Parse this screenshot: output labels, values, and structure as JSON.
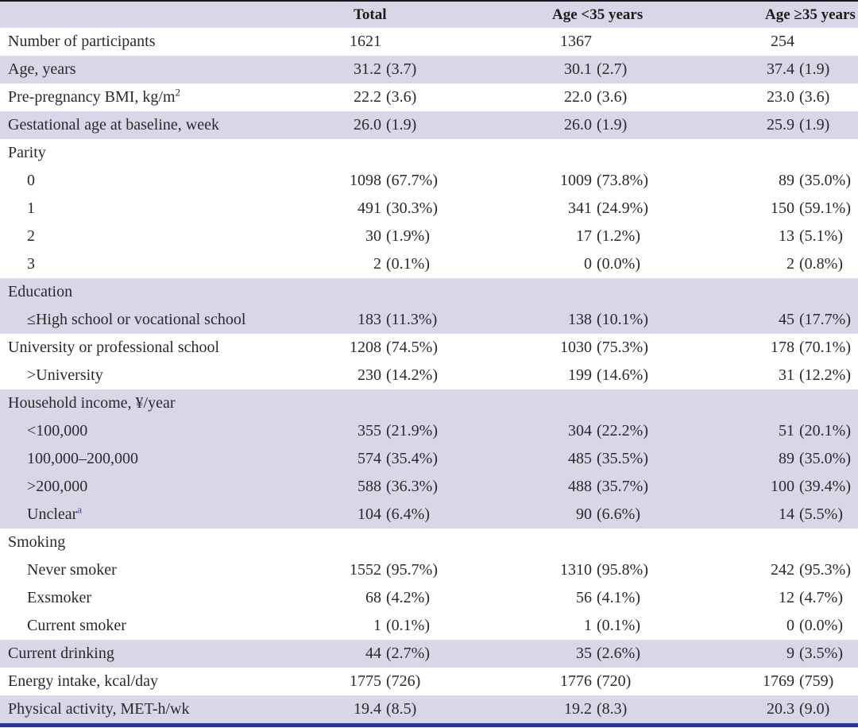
{
  "colors": {
    "stripe": "#d9d6e8",
    "header_stripe": "#d9d6e8",
    "top_rule": "#161616",
    "bottom_rule": "#2a3390",
    "footnote_marker": "#3b47c1",
    "text": "#2a2a2a"
  },
  "table": {
    "header": {
      "label": "",
      "total": "Total",
      "age_lt35": "Age <35 years",
      "age_ge35": "Age ≥35 years"
    },
    "rows": [
      {
        "label": "Number of participants",
        "indent": 0,
        "shade": "white",
        "values": [
          "1621",
          "1367",
          "254"
        ]
      },
      {
        "label": "Age, years",
        "indent": 0,
        "shade": "lav",
        "values": [
          "31.2 (3.7)",
          "30.1 (2.7)",
          "37.4 (1.9)"
        ]
      },
      {
        "label": "Pre-pregnancy BMI, kg/m",
        "sup": "2",
        "supKind": "unit",
        "indent": 0,
        "shade": "white",
        "values": [
          "22.2 (3.6)",
          "22.0 (3.6)",
          "23.0 (3.6)"
        ]
      },
      {
        "label": "Gestational age at baseline, week",
        "indent": 0,
        "shade": "lav",
        "values": [
          "26.0 (1.9)",
          "26.0 (1.9)",
          "25.9 (1.9)"
        ]
      },
      {
        "label": "Parity",
        "indent": 0,
        "shade": "white",
        "values": [
          "",
          "",
          ""
        ]
      },
      {
        "label": "0",
        "indent": 1,
        "shade": "white",
        "values": [
          "1098 (67.7%)",
          "1009 (73.8%)",
          "89 (35.0%)"
        ]
      },
      {
        "label": "1",
        "indent": 1,
        "shade": "white",
        "values": [
          "491 (30.3%)",
          "341 (24.9%)",
          "150 (59.1%)"
        ]
      },
      {
        "label": "2",
        "indent": 1,
        "shade": "white",
        "values": [
          "30 (1.9%)",
          "17 (1.2%)",
          "13 (5.1%)"
        ]
      },
      {
        "label": "3",
        "indent": 1,
        "shade": "white",
        "values": [
          "2 (0.1%)",
          "0 (0.0%)",
          "2 (0.8%)"
        ]
      },
      {
        "label": "Education",
        "indent": 0,
        "shade": "lav",
        "values": [
          "",
          "",
          ""
        ]
      },
      {
        "label": "≤High school or vocational school",
        "indent": 1,
        "shade": "lav",
        "values": [
          "183 (11.3%)",
          "138 (10.1%)",
          "45 (17.7%)"
        ]
      },
      {
        "label": "University or professional school",
        "indent": 0,
        "shade": "white",
        "values": [
          "1208 (74.5%)",
          "1030 (75.3%)",
          "178 (70.1%)"
        ]
      },
      {
        "label": ">University",
        "indent": 1,
        "shade": "white",
        "values": [
          "230 (14.2%)",
          "199 (14.6%)",
          "31 (12.2%)"
        ]
      },
      {
        "label": "Household income, ¥/year",
        "indent": 0,
        "shade": "lav",
        "values": [
          "",
          "",
          ""
        ]
      },
      {
        "label": "<100,000",
        "indent": 1,
        "shade": "lav",
        "values": [
          "355 (21.9%)",
          "304 (22.2%)",
          "51 (20.1%)"
        ]
      },
      {
        "label": "100,000–200,000",
        "indent": 1,
        "shade": "lav",
        "values": [
          "574 (35.4%)",
          "485 (35.5%)",
          "89 (35.0%)"
        ]
      },
      {
        "label": ">200,000",
        "indent": 1,
        "shade": "lav",
        "values": [
          "588 (36.3%)",
          "488 (35.7%)",
          "100 (39.4%)"
        ]
      },
      {
        "label": "Unclear",
        "sup": "a",
        "supKind": "footnote",
        "indent": 1,
        "shade": "lav",
        "values": [
          "104 (6.4%)",
          "90 (6.6%)",
          "14 (5.5%)"
        ]
      },
      {
        "label": "Smoking",
        "indent": 0,
        "shade": "white",
        "values": [
          "",
          "",
          ""
        ]
      },
      {
        "label": "Never smoker",
        "indent": 1,
        "shade": "white",
        "values": [
          "1552 (95.7%)",
          "1310 (95.8%)",
          "242 (95.3%)"
        ]
      },
      {
        "label": "Exsmoker",
        "indent": 1,
        "shade": "white",
        "values": [
          "68 (4.2%)",
          "56 (4.1%)",
          "12 (4.7%)"
        ]
      },
      {
        "label": "Current smoker",
        "indent": 1,
        "shade": "white",
        "values": [
          "1 (0.1%)",
          "1 (0.1%)",
          "0 (0.0%)"
        ]
      },
      {
        "label": "Current drinking",
        "indent": 0,
        "shade": "lav",
        "values": [
          "44 (2.7%)",
          "35 (2.6%)",
          "9 (3.5%)"
        ]
      },
      {
        "label": "Energy intake, kcal/day",
        "indent": 0,
        "shade": "white",
        "values": [
          "1775 (726)",
          "1776 (720)",
          "1769 (759)"
        ]
      },
      {
        "label": "Physical activity, MET-h/wk",
        "indent": 0,
        "shade": "lav",
        "values": [
          "19.4 (8.5)",
          "19.2 (8.3)",
          "20.3 (9.0)"
        ]
      }
    ]
  }
}
